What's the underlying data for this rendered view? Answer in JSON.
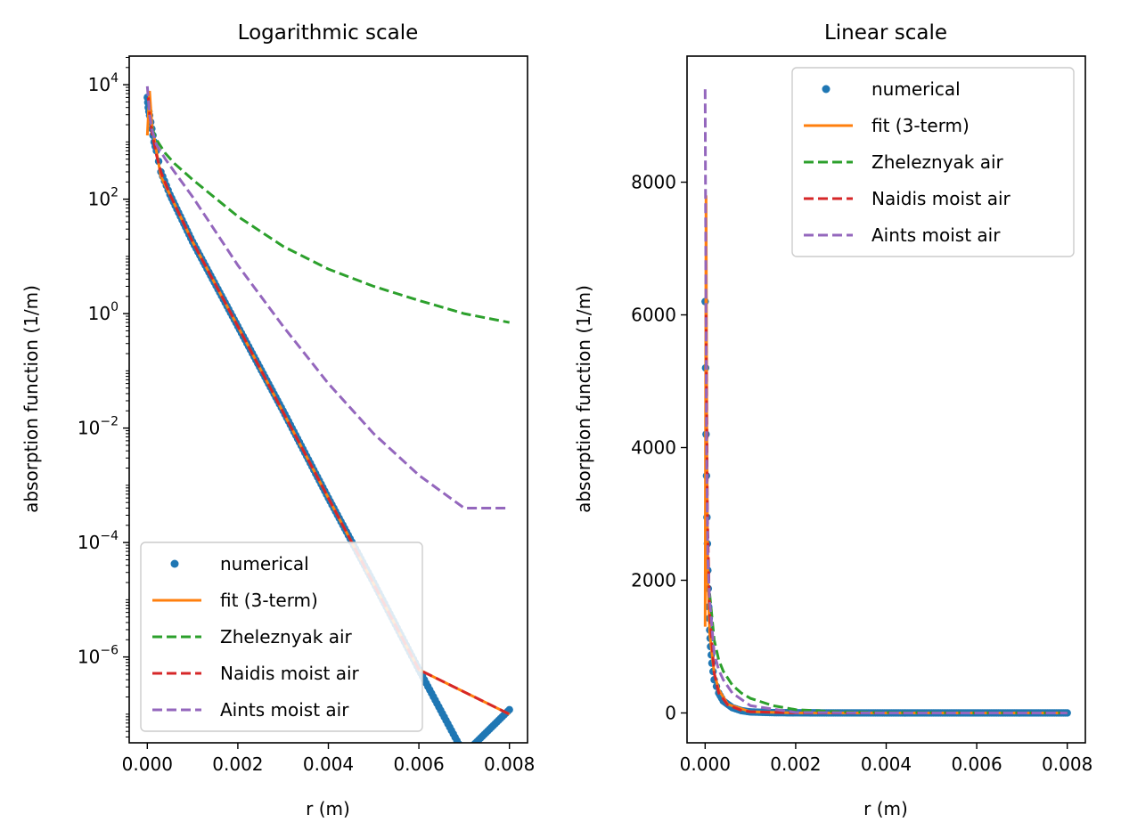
{
  "chart_data": [
    {
      "type": "line",
      "title": "Logarithmic scale",
      "xlabel": "r (m)",
      "ylabel": "absorption function (1/m)",
      "yscale": "log",
      "xlim": [
        -0.0004,
        0.0084
      ],
      "ylim_log10": [
        -7.5,
        4.5
      ],
      "xticks": [
        0.0,
        0.002,
        0.004,
        0.006,
        0.008
      ],
      "xtick_labels": [
        "0.000",
        "0.002",
        "0.004",
        "0.006",
        "0.008"
      ],
      "ytick_exponents": [
        4,
        2,
        0,
        -2,
        -4,
        -6
      ],
      "legend_position": "lower-left",
      "series": [
        {
          "name": "numerical",
          "style": "dots",
          "color": "#1f77b4",
          "x": [
            0.0,
            2e-05,
            5e-05,
            0.0001,
            0.00015,
            0.0002,
            0.0003,
            0.0005,
            0.001,
            0.002,
            0.003,
            0.004,
            0.005,
            0.006,
            0.007,
            0.008
          ],
          "y": [
            6000,
            4000,
            2900,
            1700,
            1000,
            700,
            300,
            120,
            18,
            0.6,
            0.02,
            0.0006,
            2e-05,
            6e-07,
            2e-08,
            1.2e-07
          ]
        },
        {
          "name": "fit (3-term)",
          "style": "solid",
          "color": "#ff7f0e",
          "x": [
            0.0,
            5e-05,
            0.0001,
            0.0002,
            0.0003,
            0.0005,
            0.001,
            0.002,
            0.004,
            0.006,
            0.008
          ],
          "y": [
            1300,
            7800,
            2000,
            700,
            250,
            120,
            18,
            0.6,
            0.0006,
            6e-07,
            1e-07
          ]
        },
        {
          "name": "Zheleznyak air",
          "style": "dashed",
          "color": "#2ca02c",
          "x": [
            0.0001,
            0.0002,
            0.0004,
            0.0006,
            0.001,
            0.002,
            0.003,
            0.004,
            0.005,
            0.006,
            0.007,
            0.008
          ],
          "y": [
            1800,
            1100,
            630,
            420,
            220,
            50,
            15,
            6,
            3,
            1.7,
            1.0,
            0.7
          ]
        },
        {
          "name": "Naidis moist air",
          "style": "dashed",
          "color": "#d62728",
          "x": [
            2e-05,
            5e-05,
            0.0001,
            0.0002,
            0.0003,
            0.0005,
            0.001,
            0.002,
            0.004,
            0.006,
            0.008
          ],
          "y": [
            6000,
            3000,
            1500,
            600,
            300,
            120,
            18,
            0.6,
            0.0006,
            6e-07,
            1e-07
          ]
        },
        {
          "name": "Aints moist air",
          "style": "dashed",
          "color": "#9467bd",
          "x": [
            0.0,
            5e-05,
            0.0001,
            0.0002,
            0.0004,
            0.0006,
            0.001,
            0.002,
            0.003,
            0.004,
            0.005,
            0.006,
            0.007,
            0.008
          ],
          "y": [
            9400,
            3000,
            1700,
            900,
            500,
            300,
            110,
            7,
            0.6,
            0.06,
            0.008,
            0.0015,
            0.0004,
            0.0004
          ]
        }
      ]
    },
    {
      "type": "line",
      "title": "Linear scale",
      "xlabel": "r (m)",
      "ylabel": "absorption function (1/m)",
      "yscale": "linear",
      "xlim": [
        -0.0004,
        0.0084
      ],
      "ylim": [
        -450,
        9900
      ],
      "xticks": [
        0.0,
        0.002,
        0.004,
        0.006,
        0.008
      ],
      "xtick_labels": [
        "0.000",
        "0.002",
        "0.004",
        "0.006",
        "0.008"
      ],
      "yticks": [
        0,
        2000,
        4000,
        6000,
        8000
      ],
      "ytick_labels": [
        "0",
        "2000",
        "4000",
        "6000",
        "8000"
      ],
      "legend_position": "top-right",
      "series": [
        {
          "name": "numerical",
          "style": "dots",
          "color": "#1f77b4",
          "x": [
            0.0,
            2e-05,
            4e-05,
            6e-05,
            8e-05,
            0.0001,
            0.00012,
            0.00015,
            0.0002,
            0.0003,
            0.0004,
            0.0006,
            0.0008,
            0.001,
            0.0015,
            0.002,
            0.003,
            0.004,
            0.005,
            0.006,
            0.007,
            0.008
          ],
          "y": [
            6200,
            4200,
            2950,
            2150,
            1600,
            1250,
            1000,
            750,
            500,
            300,
            180,
            80,
            35,
            15,
            5,
            2,
            0.5,
            0.1,
            0,
            0,
            0,
            0
          ]
        },
        {
          "name": "fit (3-term)",
          "style": "solid",
          "color": "#ff7f0e",
          "x": [
            0.0,
            2e-05,
            4e-05,
            6e-05,
            0.0001,
            0.0002,
            0.0003,
            0.0005,
            0.001,
            0.002,
            0.004,
            0.008
          ],
          "y": [
            1300,
            7800,
            4000,
            2000,
            1200,
            600,
            350,
            130,
            18,
            1,
            0,
            0
          ]
        },
        {
          "name": "Zheleznyak air",
          "style": "dashed",
          "color": "#2ca02c",
          "x": [
            0.0001,
            0.0002,
            0.0003,
            0.0004,
            0.0006,
            0.0008,
            0.001,
            0.0015,
            0.002,
            0.003,
            0.004,
            0.006,
            0.008
          ],
          "y": [
            1800,
            1100,
            800,
            630,
            420,
            300,
            220,
            110,
            50,
            15,
            6,
            1.7,
            0.7
          ]
        },
        {
          "name": "Naidis moist air",
          "style": "dashed",
          "color": "#d62728",
          "x": [
            2e-05,
            5e-05,
            0.0001,
            0.0002,
            0.0003,
            0.0005,
            0.0008,
            0.001,
            0.002,
            0.004,
            0.008
          ],
          "y": [
            6000,
            3000,
            1500,
            600,
            300,
            120,
            40,
            18,
            0.6,
            0,
            0
          ]
        },
        {
          "name": "Aints moist air",
          "style": "dashed",
          "color": "#9467bd",
          "x": [
            0.0,
            3e-05,
            6e-05,
            0.0001,
            0.0002,
            0.0003,
            0.0004,
            0.0006,
            0.001,
            0.002,
            0.004,
            0.008
          ],
          "y": [
            9400,
            4000,
            2300,
            1700,
            900,
            650,
            500,
            300,
            110,
            7,
            0.06,
            0
          ]
        }
      ]
    }
  ]
}
